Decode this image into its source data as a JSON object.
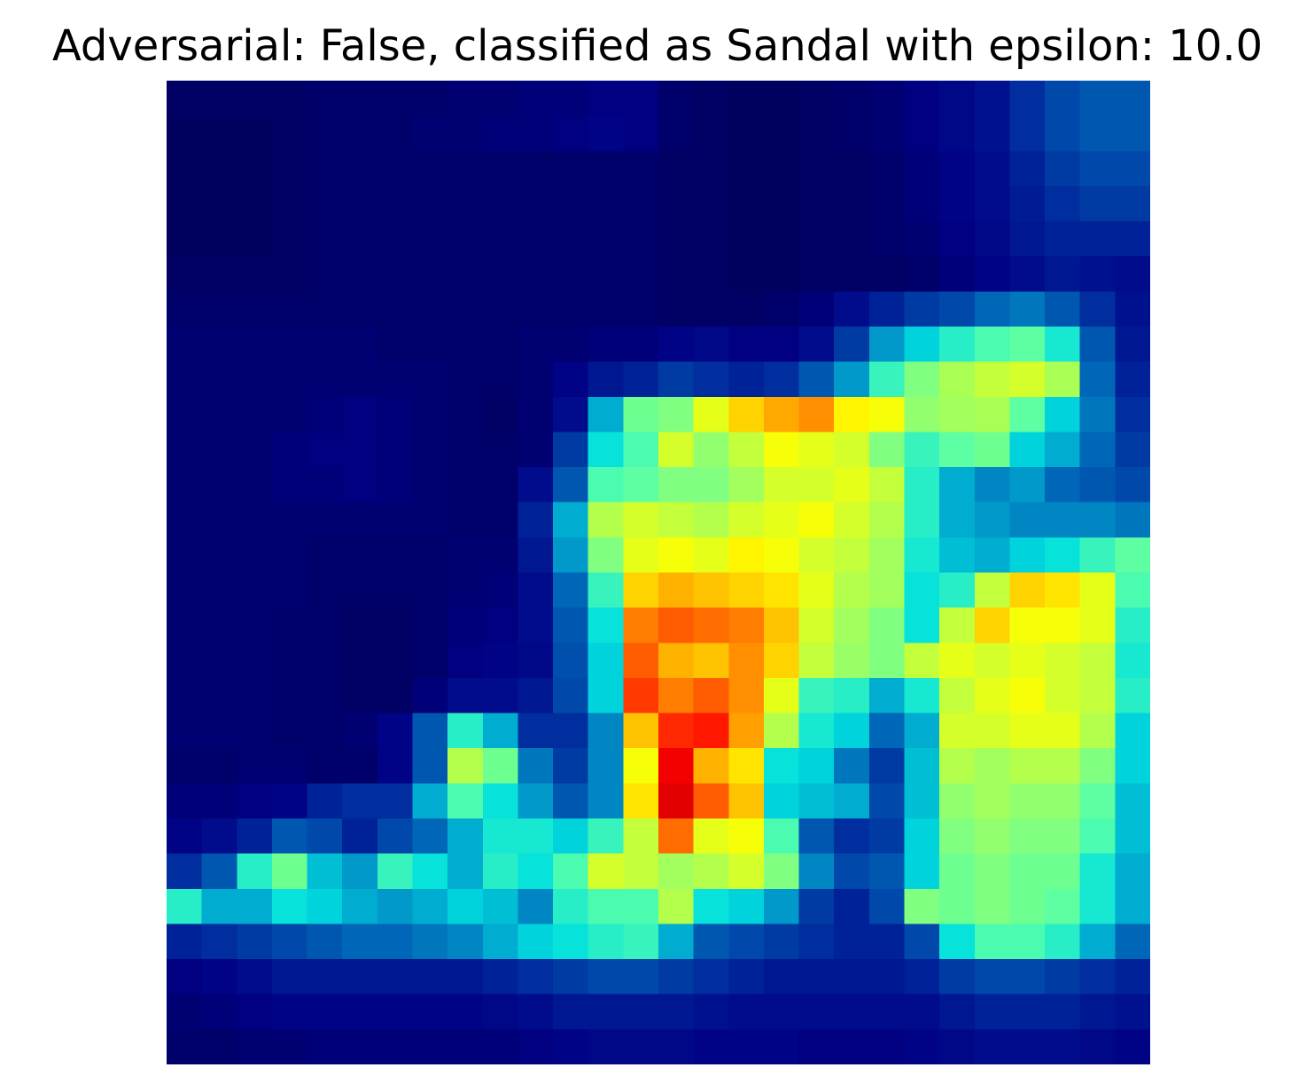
{
  "chart_data": {
    "type": "heatmap",
    "title": "Adversarial: False, classified as Sandal with epsilon: 10.0",
    "xlabel": "",
    "ylabel": "",
    "axes_visible": false,
    "grid": false,
    "rows": 28,
    "cols": 28,
    "colormap": "jet overlaid on a grayscale image (alpha blend)",
    "values": [
      [
        1,
        1,
        1,
        1,
        2,
        2,
        2,
        2,
        3,
        3,
        4,
        4,
        5,
        5,
        2,
        1,
        0,
        0,
        1,
        2,
        3,
        5,
        7,
        9,
        14,
        18,
        20,
        20
      ],
      [
        0,
        0,
        0,
        1,
        2,
        2,
        2,
        3,
        3,
        4,
        4,
        5,
        6,
        5,
        2,
        1,
        0,
        0,
        1,
        2,
        3,
        5,
        7,
        9,
        14,
        18,
        20,
        20
      ],
      [
        0,
        0,
        0,
        1,
        2,
        2,
        2,
        2,
        2,
        2,
        2,
        2,
        2,
        2,
        1,
        1,
        0,
        0,
        1,
        1,
        2,
        4,
        6,
        8,
        12,
        16,
        18,
        18
      ],
      [
        0,
        0,
        0,
        1,
        2,
        2,
        2,
        2,
        2,
        2,
        2,
        2,
        2,
        2,
        1,
        1,
        0,
        0,
        1,
        1,
        2,
        4,
        6,
        8,
        11,
        14,
        16,
        16
      ],
      [
        0,
        0,
        0,
        1,
        2,
        2,
        2,
        2,
        2,
        2,
        2,
        2,
        2,
        2,
        1,
        1,
        0,
        0,
        1,
        1,
        2,
        3,
        5,
        7,
        10,
        12,
        12,
        12
      ],
      [
        1,
        1,
        1,
        1,
        2,
        2,
        2,
        2,
        2,
        2,
        2,
        2,
        2,
        2,
        1,
        1,
        0,
        0,
        1,
        1,
        1,
        2,
        4,
        6,
        8,
        10,
        9,
        8
      ],
      [
        2,
        2,
        2,
        2,
        2,
        2,
        2,
        2,
        2,
        2,
        2,
        2,
        2,
        2,
        1,
        1,
        1,
        2,
        4,
        8,
        12,
        16,
        18,
        22,
        24,
        20,
        14,
        9
      ],
      [
        3,
        3,
        3,
        3,
        3,
        3,
        2,
        2,
        2,
        2,
        3,
        3,
        4,
        4,
        6,
        7,
        5,
        5,
        8,
        16,
        28,
        34,
        40,
        44,
        46,
        38,
        20,
        10
      ],
      [
        3,
        3,
        3,
        3,
        3,
        3,
        3,
        3,
        2,
        2,
        3,
        6,
        10,
        12,
        16,
        14,
        12,
        14,
        20,
        28,
        42,
        50,
        55,
        58,
        60,
        55,
        22,
        12
      ],
      [
        3,
        3,
        3,
        3,
        4,
        5,
        4,
        3,
        2,
        1,
        3,
        8,
        30,
        48,
        50,
        62,
        70,
        75,
        78,
        66,
        64,
        52,
        54,
        55,
        46,
        34,
        24,
        14
      ],
      [
        3,
        3,
        3,
        4,
        5,
        5,
        4,
        3,
        2,
        2,
        3,
        16,
        36,
        44,
        60,
        52,
        58,
        64,
        62,
        60,
        50,
        42,
        46,
        48,
        34,
        30,
        22,
        16
      ],
      [
        3,
        3,
        3,
        4,
        4,
        5,
        4,
        3,
        2,
        2,
        8,
        20,
        44,
        46,
        50,
        50,
        54,
        60,
        60,
        62,
        58,
        40,
        30,
        26,
        28,
        22,
        20,
        18
      ],
      [
        3,
        3,
        3,
        3,
        3,
        3,
        3,
        3,
        2,
        2,
        12,
        30,
        56,
        60,
        58,
        56,
        60,
        62,
        64,
        60,
        56,
        40,
        30,
        28,
        26,
        26,
        26,
        24
      ],
      [
        3,
        3,
        3,
        3,
        2,
        2,
        2,
        2,
        3,
        3,
        10,
        28,
        50,
        62,
        64,
        62,
        66,
        64,
        60,
        58,
        54,
        38,
        32,
        30,
        34,
        36,
        42,
        46
      ],
      [
        3,
        3,
        3,
        3,
        2,
        2,
        2,
        2,
        3,
        4,
        8,
        22,
        42,
        70,
        74,
        72,
        70,
        68,
        62,
        56,
        54,
        36,
        40,
        58,
        70,
        68,
        62,
        44
      ],
      [
        3,
        3,
        3,
        2,
        2,
        1,
        1,
        2,
        4,
        5,
        8,
        20,
        36,
        80,
        84,
        82,
        80,
        72,
        60,
        54,
        50,
        36,
        58,
        70,
        64,
        64,
        62,
        40
      ],
      [
        3,
        3,
        3,
        2,
        2,
        1,
        1,
        2,
        5,
        6,
        7,
        19,
        34,
        84,
        74,
        72,
        78,
        70,
        58,
        53,
        50,
        58,
        62,
        60,
        62,
        60,
        58,
        38
      ],
      [
        3,
        3,
        3,
        2,
        2,
        1,
        1,
        4,
        8,
        8,
        10,
        18,
        34,
        88,
        80,
        84,
        78,
        62,
        42,
        40,
        30,
        38,
        58,
        62,
        64,
        60,
        58,
        40
      ],
      [
        3,
        3,
        3,
        2,
        2,
        3,
        6,
        20,
        40,
        30,
        14,
        14,
        26,
        72,
        90,
        92,
        76,
        56,
        38,
        34,
        22,
        30,
        60,
        60,
        62,
        62,
        56,
        34
      ],
      [
        2,
        2,
        3,
        3,
        2,
        2,
        6,
        20,
        56,
        48,
        24,
        16,
        26,
        64,
        96,
        74,
        68,
        36,
        34,
        24,
        16,
        32,
        56,
        54,
        56,
        56,
        50,
        34
      ],
      [
        4,
        4,
        5,
        6,
        12,
        14,
        14,
        30,
        44,
        36,
        28,
        20,
        26,
        68,
        98,
        84,
        72,
        34,
        32,
        30,
        18,
        32,
        52,
        54,
        52,
        52,
        46,
        32
      ],
      [
        6,
        8,
        12,
        20,
        18,
        12,
        18,
        22,
        30,
        38,
        38,
        34,
        42,
        58,
        82,
        62,
        64,
        44,
        20,
        14,
        16,
        34,
        50,
        52,
        50,
        50,
        44,
        32
      ],
      [
        14,
        20,
        40,
        48,
        32,
        28,
        42,
        36,
        30,
        40,
        36,
        44,
        60,
        58,
        54,
        56,
        60,
        50,
        26,
        18,
        20,
        34,
        48,
        50,
        48,
        48,
        38,
        30
      ],
      [
        40,
        30,
        30,
        36,
        34,
        30,
        28,
        30,
        34,
        32,
        26,
        40,
        44,
        44,
        56,
        36,
        34,
        28,
        16,
        12,
        18,
        50,
        48,
        50,
        48,
        46,
        38,
        30
      ],
      [
        12,
        14,
        16,
        18,
        20,
        22,
        22,
        24,
        26,
        30,
        34,
        36,
        40,
        42,
        30,
        20,
        18,
        16,
        14,
        12,
        12,
        18,
        36,
        44,
        44,
        40,
        30,
        22
      ],
      [
        5,
        6,
        8,
        10,
        10,
        10,
        10,
        10,
        10,
        12,
        14,
        16,
        18,
        18,
        16,
        14,
        12,
        10,
        10,
        10,
        10,
        12,
        16,
        18,
        18,
        16,
        14,
        12
      ],
      [
        3,
        4,
        5,
        6,
        6,
        6,
        6,
        6,
        6,
        7,
        8,
        10,
        10,
        10,
        10,
        9,
        8,
        8,
        8,
        8,
        8,
        8,
        10,
        12,
        12,
        12,
        10,
        9
      ],
      [
        2,
        2,
        3,
        3,
        4,
        4,
        4,
        4,
        4,
        4,
        5,
        6,
        7,
        7,
        7,
        6,
        6,
        6,
        5,
        5,
        5,
        6,
        7,
        8,
        8,
        8,
        7,
        6
      ]
    ],
    "value_range": [
      0,
      100
    ]
  }
}
